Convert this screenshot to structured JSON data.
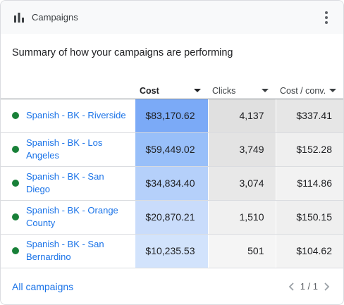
{
  "header": {
    "title": "Campaigns",
    "icon": "bar-chart-icon",
    "menu_icon": "more-vert-icon"
  },
  "summary": "Summary of how your campaigns are performing",
  "table": {
    "columns": [
      {
        "label": "",
        "key": "campaign"
      },
      {
        "label": "Cost",
        "key": "cost",
        "sorted": true
      },
      {
        "label": "Clicks",
        "key": "clicks"
      },
      {
        "label": "Cost / conv.",
        "key": "cost_conv"
      }
    ],
    "rows": [
      {
        "campaign": "Spanish - BK - Riverside",
        "cost": "$83,170.62",
        "clicks": "4,137",
        "cost_conv": "$337.41",
        "status": "enabled",
        "colors": {
          "cost": "#7baaf7",
          "clicks": "#e0e0e0",
          "cost_conv": "#e6e6e6"
        }
      },
      {
        "campaign": "Spanish - BK - Los Angeles",
        "cost": "$59,449.02",
        "clicks": "3,749",
        "cost_conv": "$152.28",
        "status": "enabled",
        "colors": {
          "cost": "#98bff9",
          "clicks": "#e3e3e3",
          "cost_conv": "#efefef"
        }
      },
      {
        "campaign": "Spanish - BK - San Diego",
        "cost": "$34,834.40",
        "clicks": "3,074",
        "cost_conv": "$114.86",
        "status": "enabled",
        "colors": {
          "cost": "#b5d0fa",
          "clicks": "#e8e8e8",
          "cost_conv": "#f2f2f2"
        }
      },
      {
        "campaign": "Spanish - BK - Orange County",
        "cost": "$20,870.21",
        "clicks": "1,510",
        "cost_conv": "$150.15",
        "status": "enabled",
        "colors": {
          "cost": "#c9dcfb",
          "clicks": "#f0f0f0",
          "cost_conv": "#efefef"
        }
      },
      {
        "campaign": "Spanish - BK - San Bernardino",
        "cost": "$10,235.53",
        "clicks": "501",
        "cost_conv": "$104.62",
        "status": "enabled",
        "colors": {
          "cost": "#d2e3fc",
          "clicks": "#f5f5f5",
          "cost_conv": "#f3f3f3"
        }
      }
    ],
    "status_color": "#188038",
    "sort_icon": "arrow-drop-down-icon"
  },
  "footer": {
    "all_link": "All campaigns",
    "page": "1 / 1",
    "prev_icon": "chevron-left-icon",
    "next_icon": "chevron-right-icon"
  }
}
